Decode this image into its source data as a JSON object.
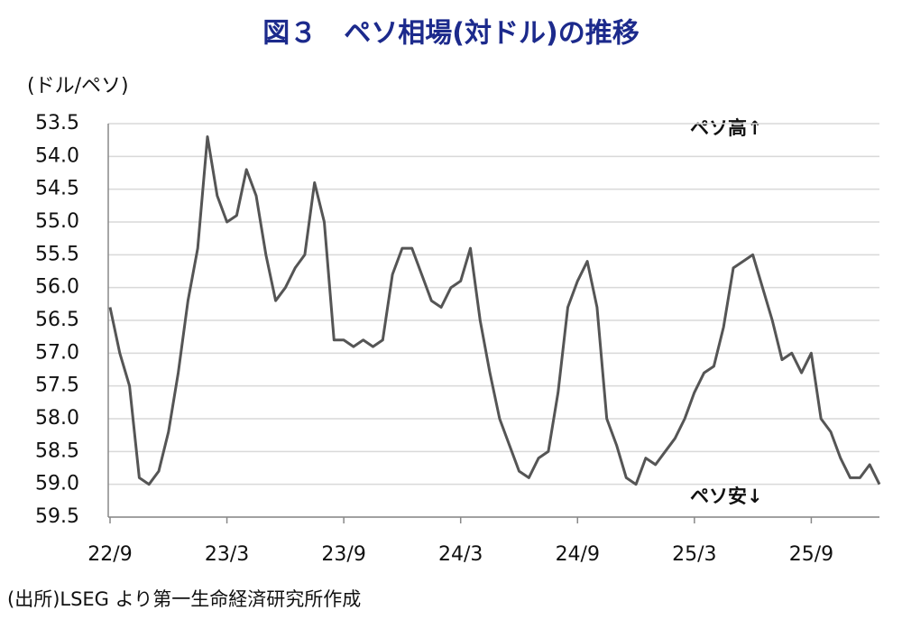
{
  "chart_data": {
    "type": "line",
    "title": "図３　ペソ相場(対ドル)の推移",
    "y_axis_label": "(ドル/ペソ)",
    "annotations": [
      "ペソ高↑",
      "ペソ安↓"
    ],
    "source": "(出所)LSEG より第一生命経済研究所作成",
    "categories": [
      "22/9",
      null,
      null,
      null,
      null,
      null,
      null,
      null,
      null,
      null,
      null,
      null,
      "23/3",
      null,
      null,
      null,
      null,
      null,
      null,
      null,
      null,
      null,
      null,
      null,
      "23/9",
      null,
      null,
      null,
      null,
      null,
      null,
      null,
      null,
      null,
      null,
      null,
      "24/3",
      null,
      null,
      null,
      null,
      null,
      null,
      null,
      null,
      null,
      null,
      null,
      "24/9",
      null,
      null,
      null,
      null,
      null,
      null,
      null,
      null,
      null,
      null,
      null,
      "25/3",
      null,
      null,
      null,
      null,
      null,
      null,
      null,
      null,
      null,
      null,
      null,
      "25/9",
      null,
      null,
      null,
      null,
      null,
      null,
      null
    ],
    "values": [
      56.3,
      57.0,
      57.5,
      58.9,
      59.0,
      58.8,
      58.2,
      57.3,
      56.2,
      55.4,
      53.7,
      54.6,
      55.0,
      54.9,
      54.2,
      54.6,
      55.5,
      56.2,
      56.0,
      55.7,
      55.5,
      54.4,
      55.0,
      56.8,
      56.8,
      56.9,
      56.8,
      56.9,
      56.8,
      55.8,
      55.4,
      55.4,
      55.8,
      56.2,
      56.3,
      56.0,
      55.9,
      55.4,
      56.5,
      57.3,
      58.0,
      58.4,
      58.8,
      58.9,
      58.6,
      58.5,
      57.6,
      56.3,
      55.9,
      55.6,
      56.3,
      58.0,
      58.4,
      58.9,
      59.0,
      58.6,
      58.7,
      58.5,
      58.3,
      58.0,
      57.6,
      57.3,
      57.2,
      56.6,
      55.7,
      55.6,
      55.5,
      56.0,
      56.5,
      57.1,
      57.0,
      57.3,
      57.0,
      58.0,
      58.2,
      58.6,
      58.9,
      58.9,
      58.7,
      59.0
    ],
    "color": "#555555",
    "ylim": [
      53.5,
      59.5
    ],
    "y_inverted": true,
    "yticks": [
      53.5,
      {
        "value": 54,
        "label": "54.0"
      },
      54.5,
      {
        "value": 55,
        "label": "55.0"
      },
      55.5,
      {
        "value": 56,
        "label": "56.0"
      },
      56.5,
      {
        "value": 57,
        "label": "57.0"
      },
      57.5,
      {
        "value": 58,
        "label": "58.0"
      },
      58.5,
      {
        "value": 59,
        "label": "59.0"
      },
      59.5
    ],
    "grid": true
  }
}
